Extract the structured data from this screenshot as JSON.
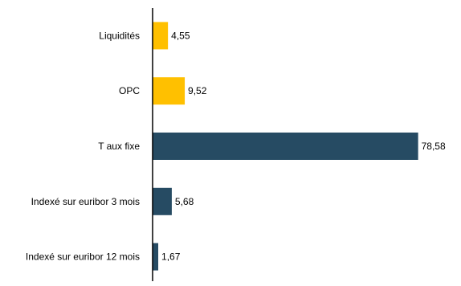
{
  "chart_data": {
    "type": "bar",
    "orientation": "horizontal",
    "categories": [
      "Liquidités",
      "OPC",
      "T aux fixe",
      "Indexé sur euribor 3 mois",
      "Indexé sur euribor 12 mois"
    ],
    "values": [
      4.55,
      9.52,
      78.58,
      5.68,
      1.67
    ],
    "value_labels": [
      "4,55",
      "9,52",
      "78,58",
      "5,68",
      "1,67"
    ],
    "colors": [
      "#FFC000",
      "#FFC000",
      "#264B63",
      "#264B63",
      "#264B63"
    ],
    "xlim": [
      0,
      82
    ],
    "grid": false,
    "legend": "none"
  }
}
